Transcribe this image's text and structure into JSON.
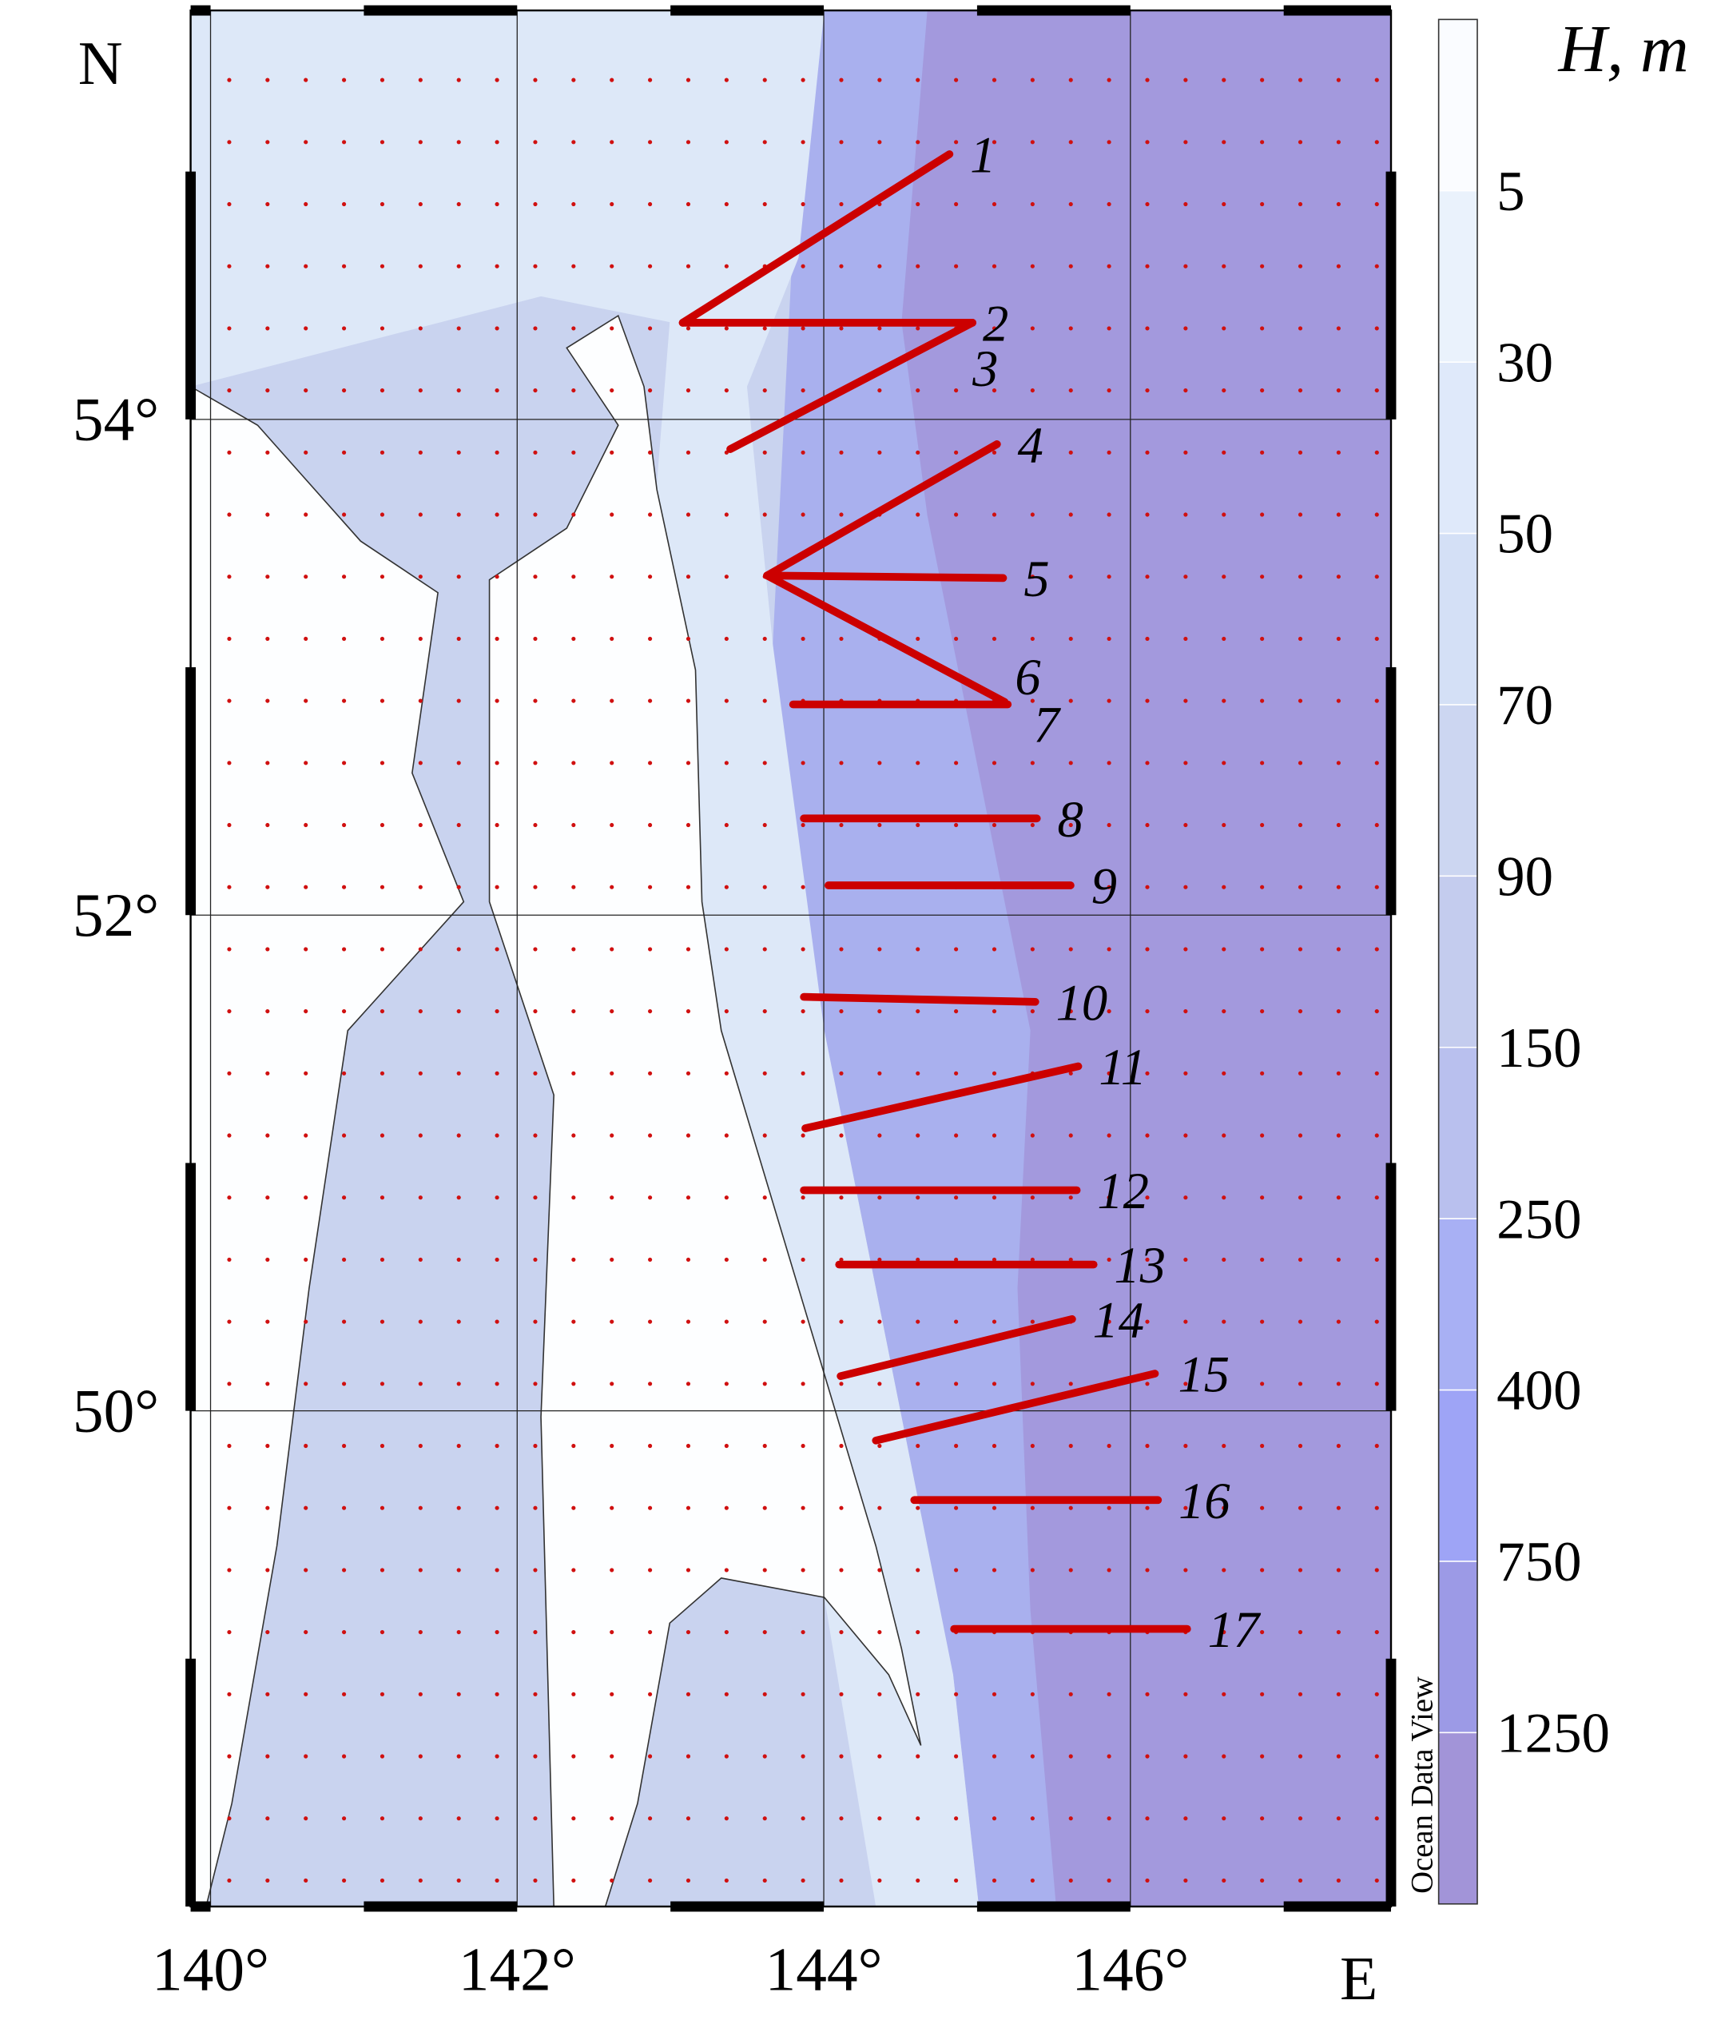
{
  "chart_data": {
    "type": "map",
    "north_label": "N",
    "east_label": "E",
    "xlim": [
      139.87,
      147.7
    ],
    "ylim": [
      48.0,
      55.65
    ],
    "xticks": [
      {
        "value": 140,
        "label": "140°"
      },
      {
        "value": 142,
        "label": "142°"
      },
      {
        "value": 144,
        "label": "144°"
      },
      {
        "value": 146,
        "label": "146°"
      }
    ],
    "yticks": [
      {
        "value": 50,
        "label": "50°"
      },
      {
        "value": 52,
        "label": "52°"
      },
      {
        "value": 54,
        "label": "54°"
      }
    ],
    "grid": true,
    "transect_color": "#cc0000",
    "transects": [
      {
        "label": "1",
        "lon": [
          144.82,
          143.08
        ],
        "lat": [
          55.07,
          54.39
        ]
      },
      {
        "label": "2",
        "lon": [
          143.08,
          144.97
        ],
        "lat": [
          54.39,
          54.39
        ]
      },
      {
        "label": "3",
        "lon": [
          144.97,
          143.39
        ],
        "lat": [
          54.39,
          53.88
        ]
      },
      {
        "label": "4",
        "lon": [
          145.13,
          143.63
        ],
        "lat": [
          53.9,
          53.37
        ]
      },
      {
        "label": "5",
        "lon": [
          143.63,
          145.17
        ],
        "lat": [
          53.37,
          53.36
        ]
      },
      {
        "label": "6",
        "lon": [
          143.63,
          145.18
        ],
        "lat": [
          53.37,
          52.86
        ]
      },
      {
        "label": "7",
        "lon": [
          143.8,
          145.2
        ],
        "lat": [
          52.85,
          52.85
        ]
      },
      {
        "label": "8",
        "lon": [
          143.87,
          145.39
        ],
        "lat": [
          52.39,
          52.39
        ]
      },
      {
        "label": "9",
        "lon": [
          144.03,
          145.61
        ],
        "lat": [
          52.12,
          52.12
        ]
      },
      {
        "label": "10",
        "lon": [
          143.87,
          145.38
        ],
        "lat": [
          51.67,
          51.65
        ]
      },
      {
        "label": "11",
        "lon": [
          143.88,
          145.66
        ],
        "lat": [
          51.14,
          51.39
        ]
      },
      {
        "label": "12",
        "lon": [
          143.87,
          145.65
        ],
        "lat": [
          50.89,
          50.89
        ]
      },
      {
        "label": "13",
        "lon": [
          144.1,
          145.76
        ],
        "lat": [
          50.59,
          50.59
        ]
      },
      {
        "label": "14",
        "lon": [
          144.11,
          145.62
        ],
        "lat": [
          50.14,
          50.37
        ]
      },
      {
        "label": "15",
        "lon": [
          144.34,
          146.16
        ],
        "lat": [
          49.88,
          50.15
        ]
      },
      {
        "label": "16",
        "lon": [
          144.59,
          146.18
        ],
        "lat": [
          49.64,
          49.64
        ]
      },
      {
        "label": "17",
        "lon": [
          144.85,
          146.37
        ],
        "lat": [
          49.12,
          49.12
        ]
      }
    ],
    "colorbar": {
      "title": "H, m",
      "credit": "Ocean Data View",
      "ticks": [
        5,
        30,
        50,
        70,
        90,
        150,
        250,
        400,
        750,
        1250
      ],
      "colors": [
        "#fafcff",
        "#eaf2fc",
        "#dfe9fa",
        "#d4e0f6",
        "#ccd6f1",
        "#c4ccee",
        "#b9c0ee",
        "#a8b0f4",
        "#9ea4f6",
        "#9c9ae6",
        "#a294d8"
      ]
    }
  }
}
